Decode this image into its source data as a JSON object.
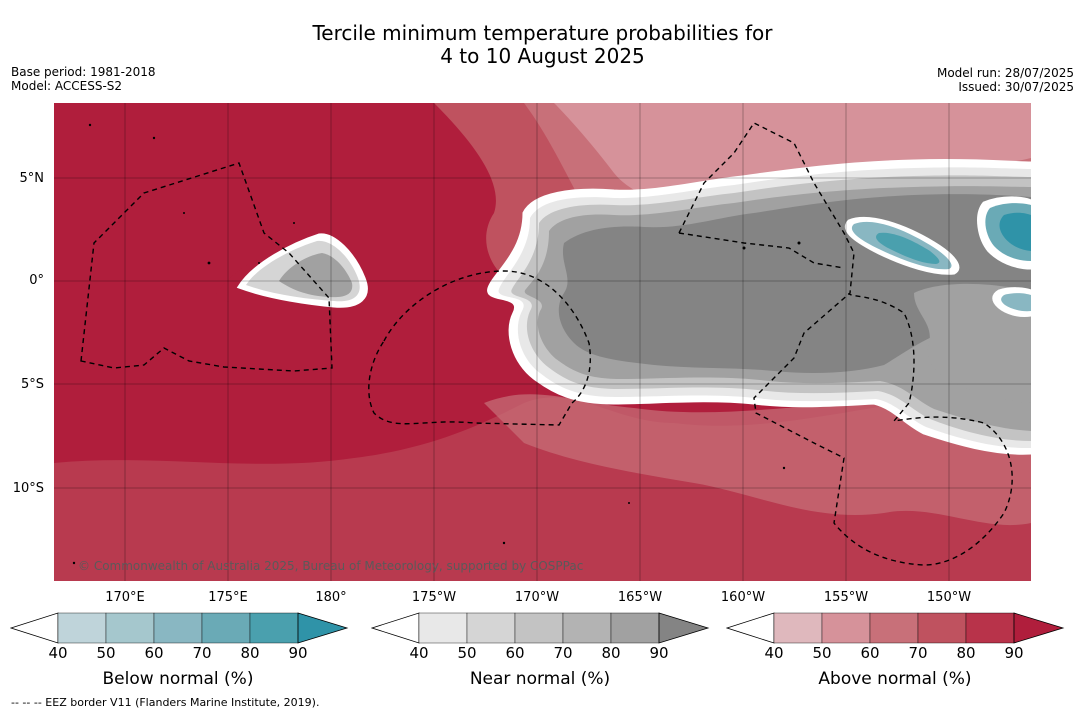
{
  "title": {
    "line1": "Tercile minimum temperature probabilities for",
    "line2": "4 to 10 August 2025"
  },
  "meta": {
    "base_period": "Base period: 1981-2018",
    "model": "Model: ACCESS-S2",
    "model_run": "Model run: 28/07/2025",
    "issued": "Issued: 30/07/2025"
  },
  "axes": {
    "lat_ticks": [
      {
        "label": "5°N",
        "lat": 5
      },
      {
        "label": "0°",
        "lat": 0
      },
      {
        "label": "5°S",
        "lat": -5
      },
      {
        "label": "10°S",
        "lat": -10
      }
    ],
    "lon_ticks": [
      {
        "label": "170°E",
        "lon": 170
      },
      {
        "label": "175°E",
        "lon": 175
      },
      {
        "label": "180°",
        "lon": 180
      },
      {
        "label": "175°W",
        "lon": 185
      },
      {
        "label": "170°W",
        "lon": 190
      },
      {
        "label": "165°W",
        "lon": 195
      },
      {
        "label": "160°W",
        "lon": 200
      },
      {
        "label": "155°W",
        "lon": 205
      },
      {
        "label": "150°W",
        "lon": 210
      }
    ],
    "extent": {
      "lon_min": 166.0,
      "lon_max": 213.5,
      "lat_min": -14.5,
      "lat_max": 8.7
    }
  },
  "copyright": "© Commonwealth of Australia 2025, Bureau of Meteorology, supported by COSPPac",
  "footnote": "--  --  -- EEZ border V11 (Flanders Marine Institute, 2019).",
  "colorbars": [
    {
      "label": "Below normal (%)",
      "ticks": [
        "40",
        "50",
        "60",
        "70",
        "80",
        "90"
      ],
      "colors": [
        "#bfd4da",
        "#a5c7cd",
        "#89b7c2",
        "#6aaab6",
        "#4aa0ae",
        "#2f93a8"
      ]
    },
    {
      "label": "Near normal (%)",
      "ticks": [
        "40",
        "50",
        "60",
        "70",
        "80",
        "90"
      ],
      "colors": [
        "#e8e8e8",
        "#d5d5d5",
        "#c3c3c3",
        "#b3b3b3",
        "#a1a1a1",
        "#848484"
      ]
    },
    {
      "label": "Above normal (%)",
      "ticks": [
        "40",
        "50",
        "60",
        "70",
        "80",
        "90"
      ],
      "colors": [
        "#dfb8bd",
        "#d6929a",
        "#c87079",
        "#bf525f",
        "#b8334a",
        "#b01e3c"
      ]
    }
  ]
}
